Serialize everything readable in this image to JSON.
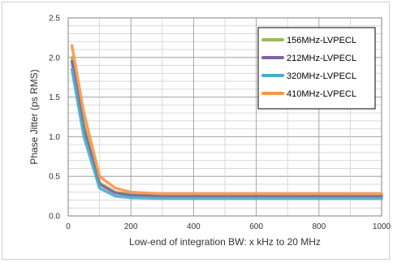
{
  "chart_data": {
    "type": "line",
    "title": "",
    "xlabel": "Low-end of integration BW: x kHz to 20 MHz",
    "ylabel": "Phase Jitter (ps RMS)",
    "xlim": [
      0,
      1000
    ],
    "ylim": [
      0,
      2.5
    ],
    "x_ticks": [
      0,
      200,
      400,
      600,
      800,
      1000
    ],
    "y_ticks": [
      0.0,
      0.5,
      1.0,
      1.5,
      2.0,
      2.5
    ],
    "y_tick_labels": [
      "0.0",
      "0.5",
      "1.0",
      "1.5",
      "2.0",
      "2.5"
    ],
    "x_minor_gridlines": [
      100,
      300,
      500,
      700,
      900
    ],
    "y_minor_step": 0.1,
    "grid": true,
    "legend_position": "top-right",
    "series": [
      {
        "name": "156MHz-LVPECL",
        "color": "#9bbb59",
        "x": [
          12,
          50,
          100,
          150,
          200,
          300,
          400,
          500,
          600,
          700,
          800,
          900,
          1000
        ],
        "y": [
          2.0,
          1.15,
          0.42,
          0.3,
          0.27,
          0.25,
          0.25,
          0.25,
          0.25,
          0.25,
          0.25,
          0.25,
          0.25
        ]
      },
      {
        "name": "212MHz-LVPECL",
        "color": "#8064a2",
        "x": [
          12,
          50,
          100,
          150,
          200,
          300,
          400,
          500,
          600,
          700,
          800,
          900,
          1000
        ],
        "y": [
          1.95,
          1.1,
          0.4,
          0.29,
          0.26,
          0.25,
          0.25,
          0.25,
          0.25,
          0.25,
          0.25,
          0.25,
          0.25
        ]
      },
      {
        "name": "320MHz-LVPECL",
        "color": "#4bacc6",
        "x": [
          12,
          50,
          100,
          150,
          200,
          300,
          400,
          500,
          600,
          700,
          800,
          900,
          1000
        ],
        "y": [
          1.85,
          1.0,
          0.35,
          0.25,
          0.23,
          0.22,
          0.22,
          0.22,
          0.22,
          0.22,
          0.22,
          0.22,
          0.22
        ]
      },
      {
        "name": "410MHz-LVPECL",
        "color": "#f79646",
        "x": [
          12,
          50,
          100,
          150,
          200,
          300,
          400,
          500,
          600,
          700,
          800,
          900,
          1000
        ],
        "y": [
          2.15,
          1.3,
          0.5,
          0.35,
          0.3,
          0.28,
          0.28,
          0.28,
          0.28,
          0.28,
          0.28,
          0.28,
          0.28
        ]
      }
    ]
  }
}
